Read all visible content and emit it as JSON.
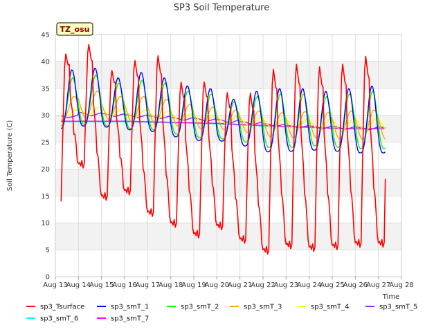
{
  "chart_data": {
    "type": "line",
    "title": "SP3 Soil Temperature",
    "xlabel": "Time",
    "ylabel": "Soil Temperature (C)",
    "ylim": [
      0,
      45
    ],
    "xlim": [
      13,
      28
    ],
    "yticks": [
      0,
      5,
      10,
      15,
      20,
      25,
      30,
      35,
      40,
      45
    ],
    "xticks": [
      13,
      14,
      15,
      16,
      17,
      18,
      19,
      20,
      21,
      22,
      23,
      24,
      25,
      26,
      27,
      28
    ],
    "xtick_labels": [
      "Aug 13",
      "Aug 14",
      "Aug 15",
      "Aug 16",
      "Aug 17",
      "Aug 18",
      "Aug 19",
      "Aug 20",
      "Aug 21",
      "Aug 22",
      "Aug 23",
      "Aug 24",
      "Aug 25",
      "Aug 26",
      "Aug 27",
      "Aug 28"
    ],
    "badge": "TZ_osu",
    "legend_position": "bottom",
    "x_start": 13.25,
    "x_end": 27.3,
    "step": 0.05,
    "series": [
      {
        "name": "sp3_Tsurface",
        "color": "#ff0000",
        "model": "surface",
        "max": [
          42,
          44,
          39,
          41,
          42,
          37,
          37,
          35,
          35,
          39.5,
          40.5,
          40,
          40.5,
          42
        ],
        "min": [
          14,
          21,
          15,
          16,
          12,
          10,
          8,
          9.5,
          7,
          5,
          6,
          5.5,
          5.8,
          6.3
        ]
      },
      {
        "name": "sp3_smT_1",
        "color": "#0000ff",
        "model": "soil",
        "lag": 0.1,
        "sharp": 1.5,
        "max": [
          38.5,
          38.8,
          37,
          38,
          37,
          35.5,
          35,
          33,
          34.5,
          35,
          35,
          34.5,
          35,
          35.5
        ],
        "min": [
          27.5,
          28,
          27.8,
          27.3,
          27,
          26,
          25.3,
          25.2,
          24.3,
          23.2,
          23.3,
          23.5,
          23.3,
          23
        ]
      },
      {
        "name": "sp3_smT_2",
        "color": "#00ff00",
        "model": "soil",
        "lag": 0.13,
        "sharp": 1.3,
        "max": [
          37,
          37.5,
          36,
          36.5,
          36,
          34.5,
          34,
          32.5,
          33.5,
          34,
          34,
          33.5,
          34,
          34.5
        ],
        "min": [
          28,
          28.3,
          28,
          27.5,
          27.3,
          26.5,
          25.8,
          25.6,
          25,
          24,
          24,
          24.3,
          24,
          23.8
        ]
      },
      {
        "name": "sp3_smT_3",
        "color": "#ffa500",
        "model": "soil",
        "lag": 0.2,
        "sharp": 1,
        "max": [
          33.5,
          34.5,
          33.5,
          33.5,
          33,
          32,
          31.5,
          31,
          30.8,
          30.5,
          30.7,
          30.5,
          30.8,
          31
        ],
        "min": [
          29,
          29.5,
          29.2,
          28.7,
          28.4,
          28,
          27.5,
          27.3,
          26.8,
          26,
          25.8,
          25.8,
          25.6,
          25.5
        ]
      },
      {
        "name": "sp3_smT_4",
        "color": "#ffff00",
        "model": "soil",
        "lag": 0.3,
        "sharp": 0.9,
        "max": [
          31,
          31.5,
          31.2,
          31,
          30.8,
          30.3,
          30,
          29.8,
          29.5,
          29.3,
          29.3,
          29.2,
          29.3,
          29.4
        ],
        "min": [
          29.8,
          30,
          29.8,
          29.5,
          29.3,
          29,
          28.6,
          28.4,
          28,
          27.5,
          27.3,
          27.2,
          27,
          27
        ]
      },
      {
        "name": "sp3_smT_5",
        "color": "#a020f0",
        "model": "soil",
        "lag": 0.45,
        "sharp": 0.8,
        "max": [
          30,
          30.5,
          30.3,
          30.1,
          29.9,
          29.6,
          29.4,
          29.2,
          28.8,
          28.4,
          28.1,
          28,
          27.9,
          27.8
        ],
        "min": [
          29.6,
          29.9,
          29.8,
          29.6,
          29.4,
          29.1,
          28.9,
          28.6,
          28.3,
          28,
          27.7,
          27.5,
          27.4,
          27.3
        ]
      },
      {
        "name": "sp3_smT_6",
        "color": "#00ffff",
        "model": "flat",
        "max": [
          28.8,
          28.8,
          28.8,
          28.8,
          28.7,
          28.6,
          28.5,
          28.4,
          28.2,
          28,
          27.9,
          27.7,
          27.6,
          27.5
        ],
        "min": [
          28.8,
          28.8,
          28.8,
          28.8,
          28.7,
          28.6,
          28.5,
          28.4,
          28.2,
          28,
          27.9,
          27.7,
          27.6,
          27.5
        ]
      },
      {
        "name": "sp3_smT_7",
        "color": "#ff00ff",
        "model": "flat",
        "max": [
          28.9,
          28.9,
          28.9,
          28.9,
          28.8,
          28.7,
          28.6,
          28.5,
          28.3,
          28.1,
          27.9,
          27.8,
          27.6,
          27.5
        ],
        "min": [
          28.9,
          28.9,
          28.9,
          28.9,
          28.8,
          28.7,
          28.6,
          28.5,
          28.3,
          28.1,
          27.9,
          27.8,
          27.6,
          27.5
        ]
      }
    ]
  }
}
